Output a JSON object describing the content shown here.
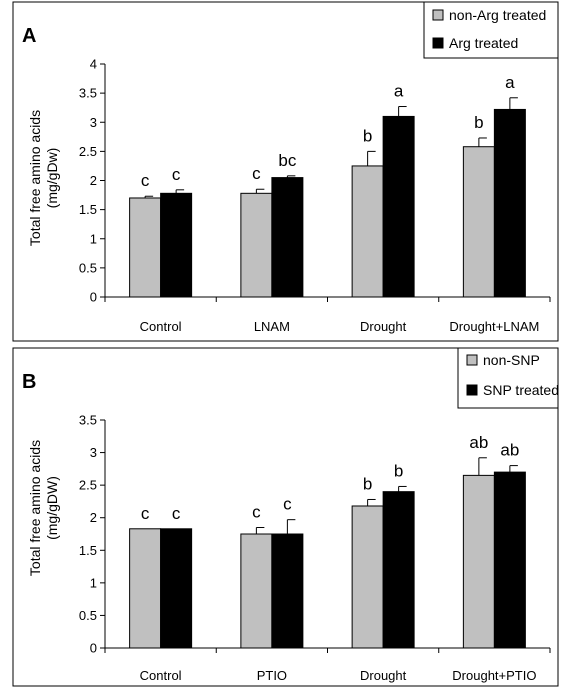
{
  "chart_data": [
    {
      "panel": "A",
      "type": "bar",
      "ylabel_lines": [
        "Total free amino acids",
        "(mg/gDw)"
      ],
      "ylim": [
        0,
        4
      ],
      "yticks": [
        "0",
        "0.5",
        "1",
        "1.5",
        "2",
        "2.5",
        "3",
        "3.5",
        "4"
      ],
      "categories": [
        "Control",
        "LNAM",
        "Drought",
        "Drought+LNAM"
      ],
      "series": [
        {
          "name": "non-Arg treated",
          "color": "#c0c0c0",
          "values": [
            1.7,
            1.78,
            2.25,
            2.58
          ],
          "errors": [
            0.03,
            0.07,
            0.25,
            0.15
          ],
          "labels": [
            "c",
            "c",
            "b",
            "b"
          ]
        },
        {
          "name": "Arg treated",
          "color": "#000000",
          "values": [
            1.78,
            2.05,
            3.1,
            3.22
          ],
          "errors": [
            0.06,
            0.03,
            0.17,
            0.2
          ],
          "labels": [
            "c",
            "bc",
            "a",
            "a"
          ]
        }
      ]
    },
    {
      "panel": "B",
      "type": "bar",
      "ylabel_lines": [
        "Total free amino acids",
        "(mg/gDW)"
      ],
      "ylim": [
        0,
        3.5
      ],
      "yticks": [
        "0",
        "0.5",
        "1",
        "1.5",
        "2",
        "2.5",
        "3",
        "3.5"
      ],
      "categories": [
        "Control",
        "PTIO",
        "Drought",
        "Drought+PTIO"
      ],
      "series": [
        {
          "name": "non-SNP",
          "color": "#c0c0c0",
          "values": [
            1.83,
            1.75,
            2.18,
            2.65
          ],
          "errors": [
            0.0,
            0.1,
            0.1,
            0.27
          ],
          "labels": [
            "c",
            "c",
            "b",
            "ab"
          ]
        },
        {
          "name": "SNP treated",
          "color": "#000000",
          "values": [
            1.83,
            1.75,
            2.4,
            2.7
          ],
          "errors": [
            0.0,
            0.22,
            0.08,
            0.1
          ],
          "labels": [
            "c",
            "c",
            "b",
            "ab"
          ]
        }
      ]
    }
  ]
}
